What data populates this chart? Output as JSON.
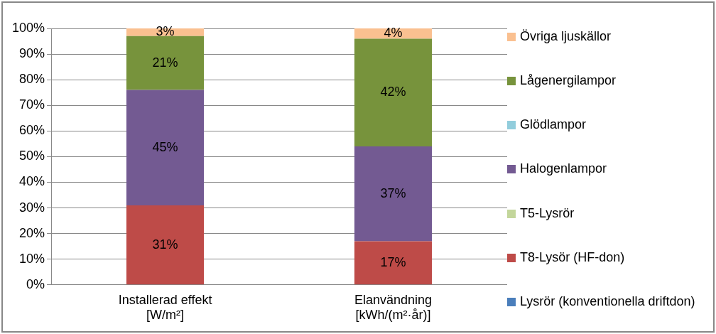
{
  "chart_data": {
    "type": "bar",
    "stacked": true,
    "categories": [
      "Installerad effekt [W/m²]",
      "Elanvändning [kWh/(m²·år)]"
    ],
    "series": [
      {
        "name": "Lysrör (konventionella driftdon)",
        "color": "#4a7ebb",
        "values": [
          0,
          0
        ],
        "value_labels": [
          null,
          null
        ]
      },
      {
        "name": "T8-Lysör (HF-don)",
        "color": "#be4b48",
        "values": [
          31,
          17
        ],
        "value_labels": [
          "31%",
          "17%"
        ]
      },
      {
        "name": "T5-Lysrör",
        "color": "#c3d69b",
        "values": [
          0,
          0
        ],
        "value_labels": [
          null,
          null
        ]
      },
      {
        "name": "Halogenlampor",
        "color": "#735a92",
        "values": [
          45,
          37
        ],
        "value_labels": [
          "45%",
          "37%"
        ]
      },
      {
        "name": "Glödlampor",
        "color": "#92cddc",
        "values": [
          0,
          0
        ],
        "value_labels": [
          null,
          null
        ]
      },
      {
        "name": "Lågenergilampor",
        "color": "#77933c",
        "values": [
          21,
          42
        ],
        "value_labels": [
          "21%",
          "42%"
        ]
      },
      {
        "name": "Övriga ljuskällor",
        "color": "#fac090",
        "values": [
          3,
          4
        ],
        "value_labels": [
          "3%",
          "4%"
        ]
      }
    ],
    "ylim": [
      0,
      100
    ],
    "yticks": [
      {
        "value": 0,
        "label": "0%"
      },
      {
        "value": 10,
        "label": "10%"
      },
      {
        "value": 20,
        "label": "20%"
      },
      {
        "value": 30,
        "label": "30%"
      },
      {
        "value": 40,
        "label": "40%"
      },
      {
        "value": 50,
        "label": "50%"
      },
      {
        "value": 60,
        "label": "60%"
      },
      {
        "value": 70,
        "label": "70%"
      },
      {
        "value": 80,
        "label": "80%"
      },
      {
        "value": 90,
        "label": "90%"
      },
      {
        "value": 100,
        "label": "100%"
      }
    ],
    "grid": "y",
    "legend": "right"
  }
}
